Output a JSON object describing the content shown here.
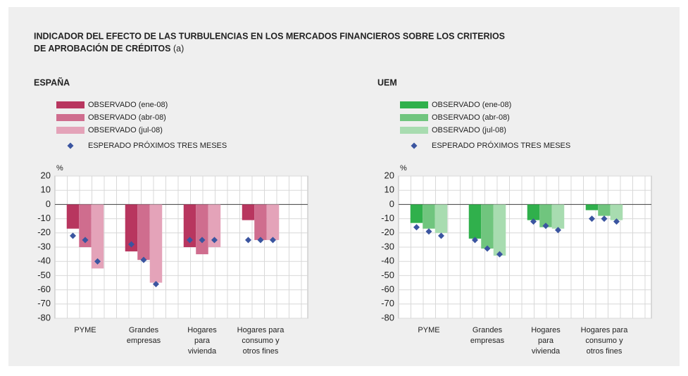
{
  "title": "INDICADOR DEL EFECTO DE LAS TURBULENCIAS EN LOS MERCADOS FINANCIEROS SOBRE LOS CRITERIOS DE APROBACIÓN DE CRÉDITOS",
  "title_note": "(a)",
  "chart_data": [
    {
      "type": "bar",
      "subtitle": "ESPAÑA",
      "ylabel": "%",
      "categories": [
        [
          "PYME"
        ],
        [
          "Grandes",
          "empresas"
        ],
        [
          "Hogares",
          "para",
          "vivienda"
        ],
        [
          "Hogares para",
          "consumo y",
          "otros fines"
        ]
      ],
      "series": [
        {
          "name": "OBSERVADO (ene-08)",
          "color": "#b8365f",
          "values": [
            -17,
            -33,
            -30,
            -11
          ]
        },
        {
          "name": "OBSERVADO (abr-08)",
          "color": "#cf6d8e",
          "values": [
            -30,
            -39,
            -35,
            -25
          ]
        },
        {
          "name": "OBSERVADO (jul-08)",
          "color": "#e4a3b9",
          "values": [
            -45,
            -55,
            -30,
            -25
          ]
        }
      ],
      "expected": {
        "name": "ESPERADO PRÓXIMOS TRES MESES",
        "color": "#3b55a0",
        "values": [
          [
            -22,
            -25,
            -40
          ],
          [
            -28,
            -39,
            -56
          ],
          [
            -25,
            -25,
            -25
          ],
          [
            -25,
            -25,
            -25
          ]
        ]
      },
      "ylim": [
        -80,
        20
      ],
      "yticks": [
        -80,
        -70,
        -60,
        -50,
        -40,
        -30,
        -20,
        -10,
        0,
        10,
        20
      ],
      "grid": true
    },
    {
      "type": "bar",
      "subtitle": "UEM",
      "ylabel": "%",
      "categories": [
        [
          "PYME"
        ],
        [
          "Grandes",
          "empresas"
        ],
        [
          "Hogares",
          "para",
          "vivienda"
        ],
        [
          "Hogares para",
          "consumo y",
          "otros fines"
        ]
      ],
      "series": [
        {
          "name": "OBSERVADO (ene-08)",
          "color": "#30b04c",
          "values": [
            -13,
            -24,
            -11,
            -4
          ]
        },
        {
          "name": "OBSERVADO (abr-08)",
          "color": "#70c57e",
          "values": [
            -17,
            -31,
            -16,
            -8
          ]
        },
        {
          "name": "OBSERVADO (jul-08)",
          "color": "#a8dcb0",
          "values": [
            -20,
            -36,
            -17,
            -11
          ]
        }
      ],
      "expected": {
        "name": "ESPERADO PRÓXIMOS TRES MESES",
        "color": "#3b55a0",
        "values": [
          [
            -16,
            -19,
            -22
          ],
          [
            -25,
            -31,
            -35
          ],
          [
            -12,
            -15,
            -18
          ],
          [
            -10,
            -10,
            -12
          ]
        ]
      },
      "ylim": [
        -80,
        20
      ],
      "yticks": [
        -80,
        -70,
        -60,
        -50,
        -40,
        -30,
        -20,
        -10,
        0,
        10,
        20
      ],
      "grid": true
    }
  ]
}
